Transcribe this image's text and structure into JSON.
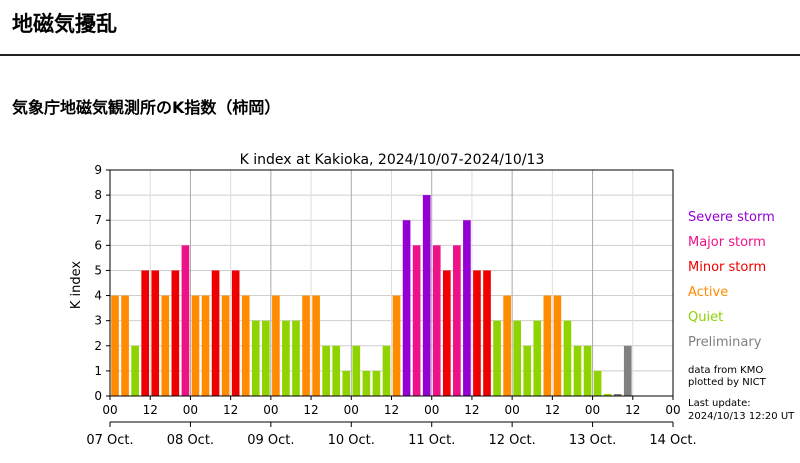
{
  "page": {
    "title": "地磁気擾乱",
    "section_heading": "気象庁地磁気観測所のK指数（柿岡）"
  },
  "chart_data": {
    "type": "bar",
    "title": "K index at Kakioka, 2024/10/07-2024/10/13",
    "xlabel": "",
    "ylabel": "K index",
    "ylim": [
      0,
      9
    ],
    "yticks": [
      "0",
      "1",
      "2",
      "3",
      "4",
      "5",
      "6",
      "7",
      "8",
      "9"
    ],
    "xticks_hour": [
      "00",
      "12",
      "00",
      "12",
      "00",
      "12",
      "00",
      "12",
      "00",
      "12",
      "00",
      "12",
      "00",
      "12",
      "00"
    ],
    "xticks_day": [
      "07 Oct.",
      "08 Oct.",
      "09 Oct.",
      "10 Oct.",
      "11 Oct.",
      "12 Oct.",
      "13 Oct.",
      "14 Oct."
    ],
    "grid": true,
    "legend": [
      {
        "label": "Severe storm",
        "color": "#9400d3"
      },
      {
        "label": "Major storm",
        "color": "#ee1289"
      },
      {
        "label": "Minor storm",
        "color": "#ee0000"
      },
      {
        "label": "Active",
        "color": "#ff8c00"
      },
      {
        "label": "Quiet",
        "color": "#8fd300"
      },
      {
        "label": "Preliminary",
        "color": "#808080"
      }
    ],
    "notes": [
      "data from KMO",
      "plotted by NICT"
    ],
    "last_update_label": "Last update:",
    "last_update": "2024/10/13 12:20 UT",
    "values": [
      4,
      4,
      2,
      5,
      5,
      4,
      5,
      6,
      4,
      4,
      5,
      4,
      5,
      4,
      3,
      3,
      4,
      3,
      3,
      4,
      4,
      2,
      2,
      1,
      2,
      1,
      1,
      2,
      4,
      7,
      6,
      8,
      6,
      5,
      6,
      7,
      5,
      5,
      3,
      4,
      3,
      2,
      3,
      4,
      4,
      3,
      2,
      2,
      1,
      0,
      0,
      2
    ],
    "categories_per_bar": "3-hour intervals from 2024/10/07 00 UT",
    "bar_colors": [
      "#ff8c00",
      "#ff8c00",
      "#8fd300",
      "#ee0000",
      "#ee0000",
      "#ff8c00",
      "#ee0000",
      "#ee1289",
      "#ff8c00",
      "#ff8c00",
      "#ee0000",
      "#ff8c00",
      "#ee0000",
      "#ff8c00",
      "#8fd300",
      "#8fd300",
      "#ff8c00",
      "#8fd300",
      "#8fd300",
      "#ff8c00",
      "#ff8c00",
      "#8fd300",
      "#8fd300",
      "#8fd300",
      "#8fd300",
      "#8fd300",
      "#8fd300",
      "#8fd300",
      "#ff8c00",
      "#9400d3",
      "#ee1289",
      "#9400d3",
      "#ee1289",
      "#ee0000",
      "#ee1289",
      "#9400d3",
      "#ee0000",
      "#ee0000",
      "#8fd300",
      "#ff8c00",
      "#8fd300",
      "#8fd300",
      "#8fd300",
      "#ff8c00",
      "#ff8c00",
      "#8fd300",
      "#8fd300",
      "#8fd300",
      "#8fd300",
      "#8fd300",
      "#808080",
      "#808080"
    ]
  }
}
